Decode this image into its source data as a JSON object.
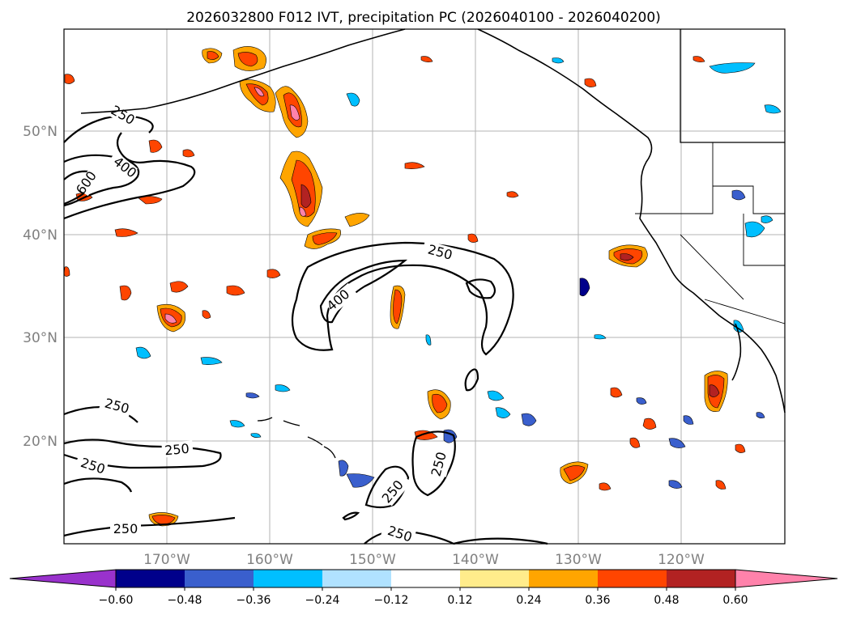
{
  "title": "2026032800 F012 IVT, precipitation PC (2026040100 - 2026040200)",
  "lon_labels": [
    "170°W",
    "160°W",
    "150°W",
    "140°W",
    "130°W",
    "120°W"
  ],
  "lat_labels": [
    "50°N",
    "40°N",
    "30°N",
    "20°N"
  ],
  "contour_labels": [
    "250",
    "400",
    "600",
    "250",
    "400",
    "250",
    "250",
    "250",
    "250",
    "250",
    "250",
    "250"
  ],
  "colorbar": {
    "ticks": [
      "−0.60",
      "−0.48",
      "−0.36",
      "−0.24",
      "−0.12",
      "0.12",
      "0.24",
      "0.36",
      "0.48",
      "0.60"
    ],
    "colors": [
      "#9932cc",
      "#00008b",
      "#3a5fcd",
      "#00bfff",
      "#b0e2ff",
      "#ffffff",
      "#ffec8b",
      "#ffa500",
      "#ff4500",
      "#b22222",
      "#ff82ab"
    ]
  },
  "colors": {
    "grid": "#b3b3b3",
    "coast": "#000000",
    "tick_text": "#808080"
  }
}
